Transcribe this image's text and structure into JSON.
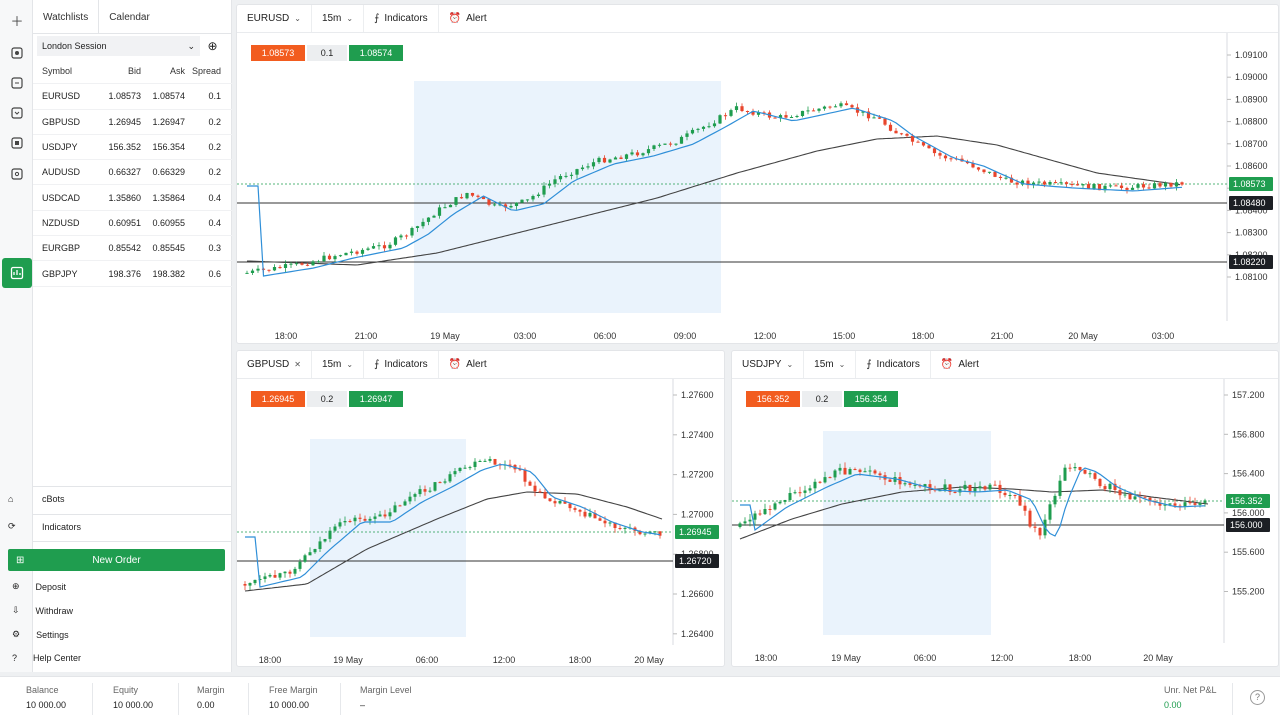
{
  "rail": {
    "icons": [
      "plus-icon",
      "positions-icon",
      "orders-icon",
      "deals-icon",
      "history-icon",
      "transactions-icon",
      "watchlist-icon"
    ]
  },
  "sidebar": {
    "tabs": [
      "Watchlists",
      "Calendar"
    ],
    "session": "London Session",
    "columns": [
      "Symbol",
      "Bid",
      "Ask",
      "Spread"
    ],
    "rows": [
      {
        "symbol": "EURUSD",
        "bid": "1.08573",
        "ask": "1.08574",
        "spread": "0.1"
      },
      {
        "symbol": "GBPUSD",
        "bid": "1.26945",
        "ask": "1.26947",
        "spread": "0.2"
      },
      {
        "symbol": "USDJPY",
        "bid": "156.352",
        "ask": "156.354",
        "spread": "0.2"
      },
      {
        "symbol": "AUDUSD",
        "bid": "0.66327",
        "ask": "0.66329",
        "spread": "0.2"
      },
      {
        "symbol": "USDCAD",
        "bid": "1.35860",
        "ask": "1.35864",
        "spread": "0.4"
      },
      {
        "symbol": "NZDUSD",
        "bid": "0.60951",
        "ask": "0.60955",
        "spread": "0.4"
      },
      {
        "symbol": "EURGBP",
        "bid": "0.85542",
        "ask": "0.85545",
        "spread": "0.3"
      },
      {
        "symbol": "GBPJPY",
        "bid": "198.376",
        "ask": "198.382",
        "spread": "0.6"
      }
    ],
    "cbots": "cBots",
    "indicators": "Indicators",
    "new_order": "New Order",
    "deposit": "Deposit",
    "withdraw": "Withdraw",
    "settings": "Settings",
    "help": "Help Center"
  },
  "toolbar": {
    "timeframe": "15m",
    "indicators": "Indicators",
    "alert": "Alert"
  },
  "charts": {
    "eurusd": {
      "symbol": "EURUSD",
      "bid": "1.08573",
      "spread": "0.1",
      "ask": "1.08574",
      "y_ticks": [
        "1.09100",
        "1.09000",
        "1.08900",
        "1.08800",
        "1.08700",
        "1.08600",
        "1.08500",
        "1.08400",
        "1.08300",
        "1.08200",
        "1.08100"
      ],
      "x_ticks": [
        "18:00",
        "21:00",
        "19 May",
        "03:00",
        "06:00",
        "09:00",
        "12:00",
        "15:00",
        "18:00",
        "21:00",
        "20 May",
        "03:00"
      ],
      "price_label": "1.08573",
      "line1_label": "1.08480",
      "line2_label": "1.08220"
    },
    "gbpusd": {
      "symbol": "GBPUSD",
      "bid": "1.26945",
      "spread": "0.2",
      "ask": "1.26947",
      "y_ticks": [
        "1.27600",
        "1.27400",
        "1.27200",
        "1.27000",
        "1.26800",
        "1.26600",
        "1.26400"
      ],
      "x_ticks": [
        "18:00",
        "19 May",
        "06:00",
        "12:00",
        "18:00",
        "20 May"
      ],
      "price_label": "1.26945",
      "line1_label": "1.26720"
    },
    "usdjpy": {
      "symbol": "USDJPY",
      "bid": "156.352",
      "spread": "0.2",
      "ask": "156.354",
      "y_ticks": [
        "157.200",
        "156.800",
        "156.400",
        "156.000",
        "155.600",
        "155.200"
      ],
      "x_ticks": [
        "18:00",
        "19 May",
        "06:00",
        "12:00",
        "18:00",
        "20 May"
      ],
      "price_label": "156.352",
      "line1_label": "156.000"
    }
  },
  "footer": {
    "balance_label": "Balance",
    "balance": "10 000.00",
    "equity_label": "Equity",
    "equity": "10 000.00",
    "margin_label": "Margin",
    "margin": "0.00",
    "free_margin_label": "Free Margin",
    "free_margin": "10 000.00",
    "margin_level_label": "Margin Level",
    "margin_level": "–",
    "pnl_label": "Unr. Net P&L",
    "pnl": "0.00"
  },
  "colors": {
    "bull": "#1f9d4f",
    "bear": "#e8452c",
    "ma_fast": "#2f8fd8",
    "ma_slow": "#444444",
    "highlight": "#eaf3fc"
  }
}
